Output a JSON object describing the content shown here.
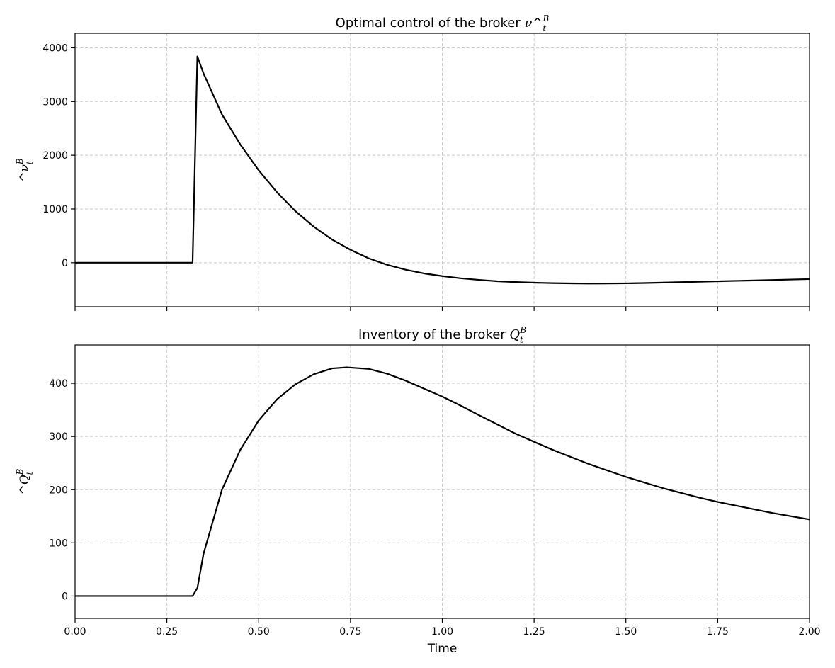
{
  "chart_data": [
    {
      "type": "line",
      "title": {
        "prefix": "Optimal control of the broker ",
        "symbol": "ν",
        "accent": "^",
        "sup": "B",
        "sub": "t"
      },
      "xlabel": "",
      "ylabel": {
        "symbol": "ν",
        "accent": "^",
        "sup": "B",
        "sub": "t"
      },
      "xlim": [
        0.0,
        2.0
      ],
      "ylim": [
        -820,
        4270
      ],
      "xticks": [
        0.0,
        0.25,
        0.5,
        0.75,
        1.0,
        1.25,
        1.5,
        1.75,
        2.0
      ],
      "xtick_labels": [],
      "yticks": [
        0,
        1000,
        2000,
        3000,
        4000
      ],
      "ytick_labels": [
        "0",
        "1000",
        "2000",
        "3000",
        "4000"
      ],
      "grid": true,
      "series": [
        {
          "color": "#000000",
          "x": [
            0.0,
            0.1,
            0.2,
            0.3,
            0.32,
            0.333,
            0.35,
            0.4,
            0.45,
            0.5,
            0.55,
            0.6,
            0.65,
            0.7,
            0.75,
            0.8,
            0.85,
            0.9,
            0.95,
            1.0,
            1.05,
            1.1,
            1.15,
            1.2,
            1.25,
            1.3,
            1.35,
            1.4,
            1.45,
            1.5,
            1.55,
            1.6,
            1.65,
            1.7,
            1.75,
            1.8,
            1.85,
            1.9,
            1.95,
            2.0
          ],
          "y": [
            0,
            0,
            0,
            0,
            0,
            3840,
            3520,
            2760,
            2200,
            1720,
            1310,
            960,
            670,
            430,
            240,
            80,
            -40,
            -130,
            -200,
            -250,
            -290,
            -320,
            -345,
            -360,
            -372,
            -380,
            -385,
            -388,
            -387,
            -384,
            -378,
            -370,
            -362,
            -354,
            -346,
            -338,
            -330,
            -322,
            -313,
            -305
          ]
        }
      ]
    },
    {
      "type": "line",
      "title": {
        "prefix": "Inventory of the broker ",
        "symbol": "Q",
        "accent": "",
        "sup": "B",
        "sub": "t"
      },
      "xlabel": "Time",
      "ylabel": {
        "symbol": "Q",
        "accent": "^",
        "sup": "B",
        "sub": "t"
      },
      "xlim": [
        0.0,
        2.0
      ],
      "ylim": [
        -42,
        472
      ],
      "xticks": [
        0.0,
        0.25,
        0.5,
        0.75,
        1.0,
        1.25,
        1.5,
        1.75,
        2.0
      ],
      "xtick_labels": [
        "0.00",
        "0.25",
        "0.50",
        "0.75",
        "1.00",
        "1.25",
        "1.50",
        "1.75",
        "2.00"
      ],
      "yticks": [
        0,
        100,
        200,
        300,
        400
      ],
      "ytick_labels": [
        "0",
        "100",
        "200",
        "300",
        "400"
      ],
      "grid": true,
      "series": [
        {
          "color": "#000000",
          "x": [
            0.0,
            0.1,
            0.2,
            0.3,
            0.32,
            0.333,
            0.35,
            0.4,
            0.45,
            0.5,
            0.55,
            0.6,
            0.65,
            0.7,
            0.74,
            0.8,
            0.85,
            0.9,
            0.95,
            1.0,
            1.05,
            1.1,
            1.2,
            1.25,
            1.3,
            1.4,
            1.5,
            1.6,
            1.7,
            1.75,
            1.8,
            1.9,
            2.0
          ],
          "y": [
            0,
            0,
            0,
            0,
            0,
            15,
            80,
            200,
            275,
            330,
            370,
            398,
            417,
            428,
            430,
            427,
            418,
            405,
            390,
            375,
            358,
            340,
            305,
            290,
            275,
            248,
            224,
            203,
            185,
            177,
            170,
            156,
            144
          ]
        }
      ]
    }
  ]
}
